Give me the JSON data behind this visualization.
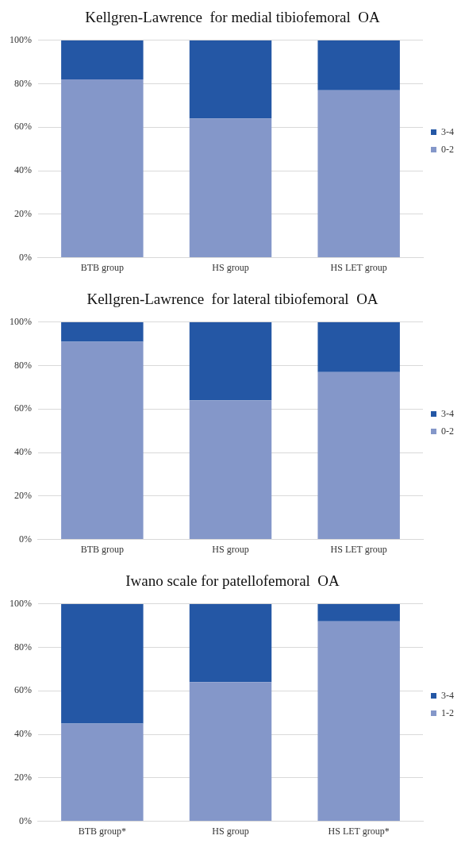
{
  "chart_data": [
    {
      "type": "bar",
      "title": "Kellgren-Lawrence  for medial tibiofemoral  OA",
      "categories": [
        "BTB group",
        "HS group",
        "HS LET group"
      ],
      "stacked": true,
      "legend": "right",
      "grid": "y",
      "ylim": [
        0,
        100
      ],
      "yticks": [
        {
          "value": 0,
          "label": "0%"
        },
        {
          "value": 20,
          "label": "20%"
        },
        {
          "value": 40,
          "label": "40%"
        },
        {
          "value": 60,
          "label": "60%"
        },
        {
          "value": 80,
          "label": "80%"
        },
        {
          "value": 100,
          "label": "100%"
        }
      ],
      "series": [
        {
          "name": "0-2",
          "color": "#8497c9",
          "values": [
            82,
            64,
            77
          ]
        },
        {
          "name": "3-4",
          "color": "#2457a5",
          "values": [
            18,
            36,
            23
          ]
        }
      ]
    },
    {
      "type": "bar",
      "title": "Kellgren-Lawrence  for lateral tibiofemoral  OA",
      "categories": [
        "BTB group",
        "HS group",
        "HS LET group"
      ],
      "stacked": true,
      "legend": "right",
      "grid": "y",
      "ylim": [
        0,
        100
      ],
      "yticks": [
        {
          "value": 0,
          "label": "0%"
        },
        {
          "value": 20,
          "label": "20%"
        },
        {
          "value": 40,
          "label": "40%"
        },
        {
          "value": 60,
          "label": "60%"
        },
        {
          "value": 80,
          "label": "80%"
        },
        {
          "value": 100,
          "label": "100%"
        }
      ],
      "series": [
        {
          "name": "0-2",
          "color": "#8497c9",
          "values": [
            91,
            64,
            77
          ]
        },
        {
          "name": "3-4",
          "color": "#2457a5",
          "values": [
            9,
            36,
            23
          ]
        }
      ]
    },
    {
      "type": "bar",
      "title": "Iwano scale for patellofemoral  OA",
      "categories": [
        "BTB group*",
        "HS group",
        "HS LET group*"
      ],
      "stacked": true,
      "legend": "right",
      "grid": "y",
      "ylim": [
        0,
        100
      ],
      "yticks": [
        {
          "value": 0,
          "label": "0%"
        },
        {
          "value": 20,
          "label": "20%"
        },
        {
          "value": 40,
          "label": "40%"
        },
        {
          "value": 60,
          "label": "60%"
        },
        {
          "value": 80,
          "label": "80%"
        },
        {
          "value": 100,
          "label": "100%"
        }
      ],
      "series": [
        {
          "name": "1-2",
          "color": "#8497c9",
          "values": [
            45,
            64,
            92
          ]
        },
        {
          "name": "3-4",
          "color": "#2457a5",
          "values": [
            55,
            36,
            8
          ]
        }
      ]
    }
  ]
}
